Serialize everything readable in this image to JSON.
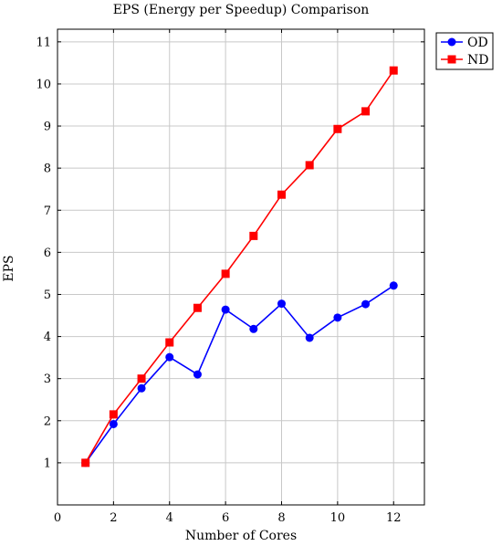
{
  "chart_data": {
    "type": "line",
    "title": "EPS (Energy per Speedup) Comparison",
    "xlabel": "Number of Cores",
    "ylabel": "EPS",
    "xlim": [
      0,
      13.1
    ],
    "ylim": [
      0,
      11.3
    ],
    "xticks": [
      0,
      2,
      4,
      6,
      8,
      10,
      12
    ],
    "yticks": [
      1,
      2,
      3,
      4,
      5,
      6,
      7,
      8,
      9,
      10,
      11
    ],
    "grid": true,
    "legend_position": "outside-top-right",
    "series": [
      {
        "name": "OD",
        "color": "#0000ff",
        "marker": "circle",
        "x": [
          1,
          2,
          3,
          4,
          5,
          6,
          7,
          8,
          9,
          10,
          11,
          12
        ],
        "y": [
          1.0,
          1.92,
          2.77,
          3.51,
          3.1,
          4.64,
          4.18,
          4.78,
          3.97,
          4.45,
          4.77,
          5.21
        ]
      },
      {
        "name": "ND",
        "color": "#ff0000",
        "marker": "square",
        "x": [
          1,
          2,
          3,
          4,
          5,
          6,
          7,
          8,
          9,
          10,
          11,
          12
        ],
        "y": [
          1.0,
          2.15,
          3.0,
          3.86,
          4.68,
          5.49,
          6.39,
          7.37,
          8.07,
          8.93,
          9.35,
          10.32
        ]
      }
    ]
  }
}
